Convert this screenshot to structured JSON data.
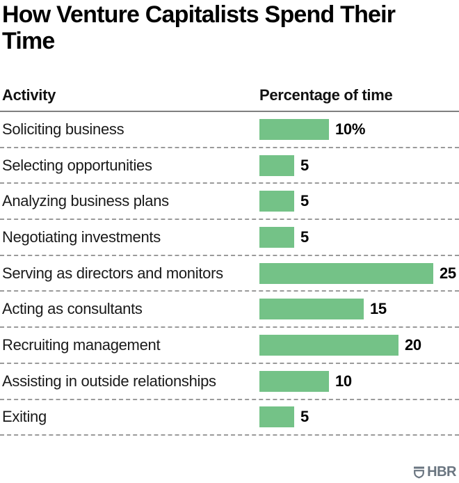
{
  "title": "How Venture Capitalists Spend Their Time",
  "table": {
    "activity_header": "Activity",
    "value_header": "Percentage of time"
  },
  "chart_data": {
    "type": "bar",
    "orientation": "horizontal",
    "title": "How Venture Capitalists Spend Their Time",
    "column_headers": [
      "Activity",
      "Percentage of time"
    ],
    "categories": [
      "Soliciting business",
      "Selecting opportunities",
      "Analyzing business plans",
      "Negotiating investments",
      "Serving as directors and monitors",
      "Acting as consultants",
      "Recruiting management",
      "Assisting in outside relationships",
      "Exiting"
    ],
    "values": [
      10,
      5,
      5,
      5,
      25,
      15,
      20,
      10,
      5
    ],
    "value_labels": [
      "10%",
      "5",
      "5",
      "5",
      "25",
      "15",
      "20",
      "10",
      "5"
    ],
    "unit": "percent",
    "xlim": [
      0,
      25
    ],
    "bar_color": "#74c287",
    "grid": "dashed-row-separators",
    "legend": "none"
  },
  "footer": {
    "brand": "HBR",
    "logo_color": "#6a7580"
  }
}
